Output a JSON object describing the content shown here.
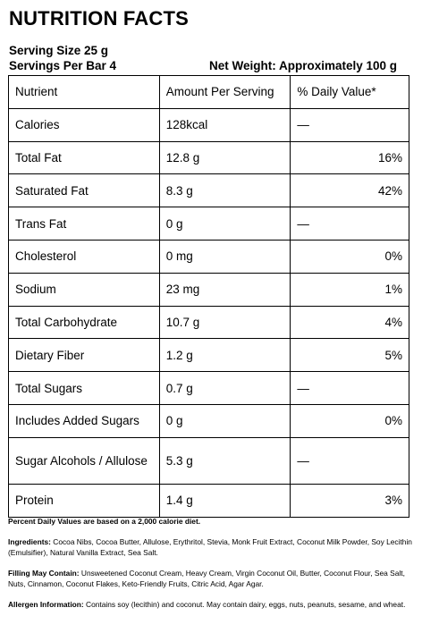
{
  "title": "NUTRITION FACTS",
  "serving_size": "Serving Size 25 g",
  "servings_per": "Servings Per Bar 4",
  "net_weight": "Net Weight: Approximately 100 g",
  "table": {
    "headers": [
      "Nutrient",
      "Amount Per Serving",
      "% Daily Value*"
    ],
    "rows": [
      {
        "nutrient": "Calories",
        "amount": "128kcal",
        "dv": "—"
      },
      {
        "nutrient": "Total Fat",
        "amount": "12.8 g",
        "dv": "16%"
      },
      {
        "nutrient": "Saturated Fat",
        "amount": "8.3 g",
        "dv": "42%"
      },
      {
        "nutrient": "Trans Fat",
        "amount": "0 g",
        "dv": "—"
      },
      {
        "nutrient": "Cholesterol",
        "amount": "0 mg",
        "dv": "0%"
      },
      {
        "nutrient": "Sodium",
        "amount": "23 mg",
        "dv": "1%"
      },
      {
        "nutrient": "Total Carbohydrate",
        "amount": "10.7 g",
        "dv": "4%"
      },
      {
        "nutrient": "Dietary Fiber",
        "amount": "1.2 g",
        "dv": "5%"
      },
      {
        "nutrient": "Total Sugars",
        "amount": "0.7 g",
        "dv": "—"
      },
      {
        "nutrient": "Includes Added Sugars",
        "amount": "0 g",
        "dv": "0%"
      },
      {
        "nutrient": "Sugar Alcohols / Allulose",
        "amount": "5.3 g",
        "dv": "—"
      },
      {
        "nutrient": "Protein",
        "amount": "1.4 g",
        "dv": "3%"
      }
    ]
  },
  "percent_note": "Percent Daily Values are based on a 2,000 calorie diet.",
  "ingredients": {
    "label": "Ingredients:",
    "text": " Cocoa Nibs, Cocoa Butter, Allulose, Erythritol, Stevia, Monk Fruit Extract, Coconut Milk Powder, Soy Lecithin (Emulsifier), Natural Vanilla Extract, Sea Salt."
  },
  "filling": {
    "label": "Filling May Contain:",
    "text": " Unsweetened Coconut Cream, Heavy Cream, Virgin Coconut Oil, Butter, Coconut Flour, Sea Salt, Nuts, Cinnamon, Coconut Flakes, Keto-Friendly Fruits, Citric Acid, Agar Agar."
  },
  "allergen": {
    "label": "Allergen Information:",
    "text": " Contains soy (lecithin) and coconut. May contain dairy, eggs, nuts, peanuts, sesame, and wheat."
  }
}
